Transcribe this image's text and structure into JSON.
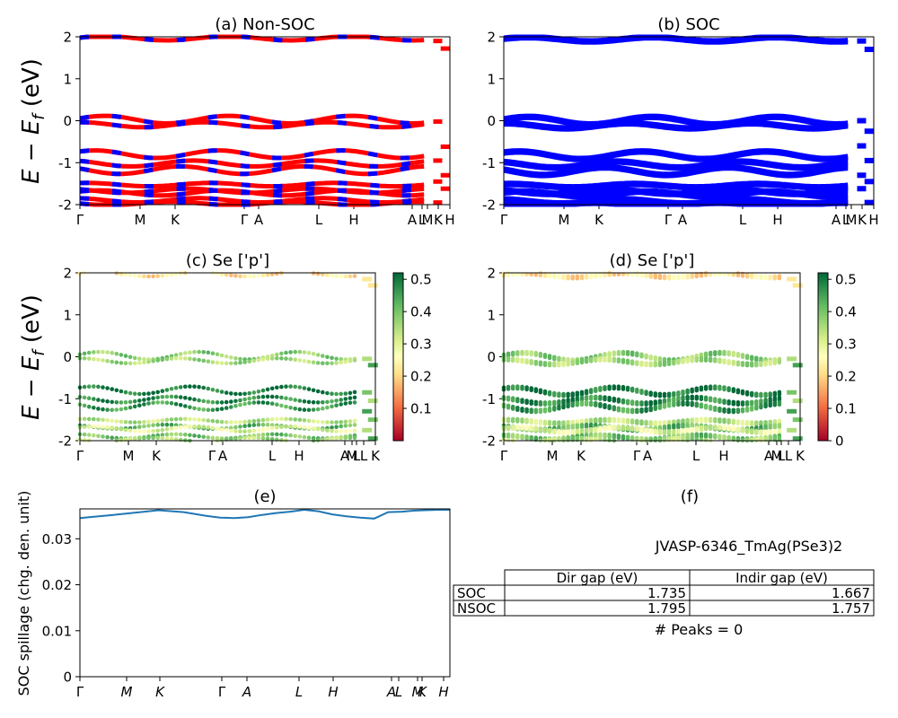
{
  "figure": {
    "id_label": "JVASP-6346_TmAg(PSe3)2",
    "peaks_label": "# Peaks = 0",
    "ylabel_energy": "E − E",
    "ylabel_energy_sub": "f",
    "ylabel_energy_unit": " (eV)",
    "ylabel_spillage": "SOC spillage (chg. den. unit)"
  },
  "chart_data": [
    {
      "panel": "a",
      "type": "line",
      "title": "(a) Non-SOC",
      "ylim": [
        -2,
        2
      ],
      "yticks": [
        -2,
        -1,
        0,
        1,
        2
      ],
      "xticks": [
        "Γ",
        "M",
        "K",
        "Γ",
        "A",
        "L",
        "H",
        "A",
        "L",
        "M",
        "K",
        "H"
      ],
      "series": [
        {
          "spin": "up",
          "color": "#0000ff"
        },
        {
          "spin": "down",
          "color": "#ff0000"
        }
      ],
      "bands": [
        {
          "x": [
            0,
            0.33,
            0.5,
            0.67,
            1
          ],
          "y": [
            1.97,
            2.0,
            1.88,
            2.0,
            1.97
          ]
        },
        {
          "x": [
            0,
            0.25,
            0.5,
            0.75,
            1
          ],
          "y": [
            0.0,
            -0.05,
            -0.28,
            -0.05,
            0.0
          ]
        },
        {
          "x": [
            0,
            0.25,
            0.5,
            0.75,
            1
          ],
          "y": [
            -0.75,
            -0.92,
            -0.6,
            -0.92,
            -0.75
          ]
        },
        {
          "x": [
            0,
            0.25,
            0.5,
            0.75,
            1
          ],
          "y": [
            -1.05,
            -1.15,
            -0.9,
            -1.15,
            -1.05
          ]
        },
        {
          "x": [
            0,
            0.25,
            0.5,
            0.75,
            1
          ],
          "y": [
            -1.55,
            -1.5,
            -1.6,
            -1.5,
            -1.55
          ]
        },
        {
          "x": [
            0,
            0.25,
            0.5,
            0.75,
            1
          ],
          "y": [
            -1.68,
            -1.75,
            -1.65,
            -1.75,
            -1.68
          ]
        },
        {
          "x": [
            0,
            0.25,
            0.5,
            0.75,
            1
          ],
          "y": [
            -1.85,
            -1.9,
            -1.8,
            -1.9,
            -1.85
          ]
        }
      ]
    },
    {
      "panel": "b",
      "type": "line",
      "title": "(b) SOC",
      "ylim": [
        -2,
        2
      ],
      "yticks": [
        -2,
        -1,
        0,
        1,
        2
      ],
      "xticks": [
        "Γ",
        "M",
        "K",
        "Γ",
        "A",
        "L",
        "H",
        "A",
        "L",
        "M",
        "K",
        "H"
      ],
      "series": [
        {
          "color": "#0000ff"
        }
      ]
    },
    {
      "panel": "c",
      "type": "scatter",
      "title": "(c)  Se ['p']",
      "ylim": [
        -2,
        2
      ],
      "yticks": [
        -2,
        -1,
        0,
        1,
        2
      ],
      "xticks": [
        "Γ",
        "M",
        "K",
        "Γ",
        "A",
        "L",
        "H",
        "A",
        "M",
        "L",
        "L",
        "K"
      ],
      "colorbar": {
        "ticks": [
          0.1,
          0.2,
          0.3,
          0.4,
          0.5
        ],
        "range": [
          0.0,
          0.52
        ],
        "cmap": "RdYlGn"
      }
    },
    {
      "panel": "d",
      "type": "scatter",
      "title": "(d) Se ['p']",
      "ylim": [
        -2,
        2
      ],
      "yticks": [
        -2,
        -1,
        0,
        1,
        2
      ],
      "xticks": [
        "Γ",
        "M",
        "K",
        "Γ",
        "A",
        "L",
        "H",
        "A",
        "M",
        "L",
        "L",
        "K"
      ],
      "colorbar": {
        "ticks": [
          0.0,
          0.1,
          0.2,
          0.3,
          0.4,
          0.5
        ],
        "range": [
          0.0,
          0.52
        ],
        "cmap": "RdYlGn"
      }
    },
    {
      "panel": "e",
      "type": "line",
      "title": "(e)",
      "ylabel": "SOC spillage (chg. den. unit)",
      "ylim": [
        0.0,
        0.0365
      ],
      "yticks": [
        0.0,
        0.01,
        0.02,
        0.03
      ],
      "xticks": [
        "Γ",
        "M",
        "K",
        "Γ",
        "A",
        "L",
        "H",
        "A",
        "L",
        "M",
        "K",
        "H"
      ],
      "series": [
        {
          "color": "#1f77b4",
          "x": [
            0,
            0.05,
            0.12,
            0.2,
            0.28,
            0.37,
            0.45,
            0.5,
            0.55,
            0.6,
            0.65,
            0.7,
            0.75,
            0.8,
            0.85,
            0.9,
            0.95,
            1.0,
            1.05,
            1.1,
            1.15,
            1.19,
            1.23,
            1.28,
            1.32
          ],
          "y": [
            0.0345,
            0.0348,
            0.0352,
            0.0357,
            0.0362,
            0.0358,
            0.035,
            0.0346,
            0.0345,
            0.0347,
            0.0352,
            0.0356,
            0.0359,
            0.0363,
            0.036,
            0.0353,
            0.0349,
            0.0346,
            0.0344,
            0.0358,
            0.0359,
            0.0361,
            0.0362,
            0.0363,
            0.0363
          ]
        }
      ]
    },
    {
      "panel": "f",
      "type": "table",
      "title": "(f)",
      "columns": [
        "Dir gap (eV)",
        "Indir gap (eV)"
      ],
      "rows": [
        {
          "label": "SOC",
          "values": [
            "1.735",
            "1.667"
          ]
        },
        {
          "label": "NSOC",
          "values": [
            "1.795",
            "1.757"
          ]
        }
      ]
    }
  ]
}
